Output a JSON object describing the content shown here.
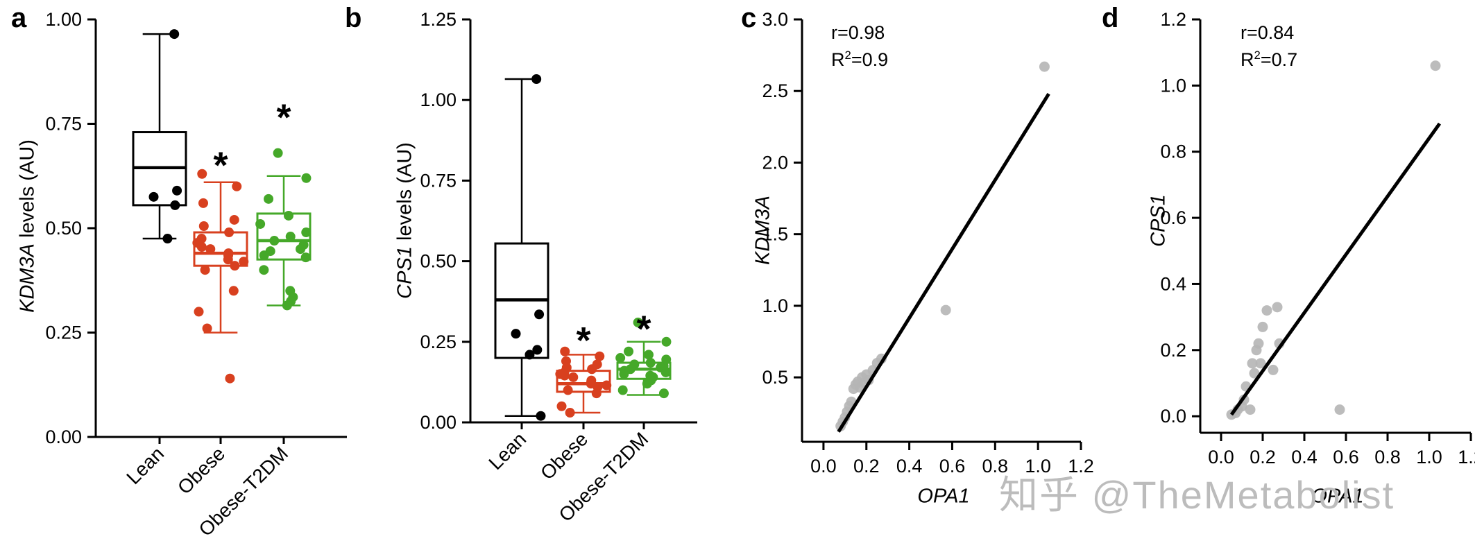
{
  "figure": {
    "background": "#ffffff"
  },
  "watermark": {
    "text": "知乎 @TheMetabolist"
  },
  "panels": {
    "a": {
      "letter": "a"
    },
    "b": {
      "letter": "b"
    },
    "c": {
      "letter": "c"
    },
    "d": {
      "letter": "d"
    }
  },
  "sig_marker": "*",
  "colors": {
    "lean": "#000000",
    "obese": "#d8401f",
    "obese_t2dm": "#45a829",
    "scatter_point": "#b5b5b5",
    "axis": "#000000"
  },
  "chart_data": [
    {
      "id": "a",
      "type": "box",
      "ylabel": {
        "italic": "KDM3A",
        "rest": " levels (AU)"
      },
      "ylim": [
        0,
        1.0
      ],
      "yticks": [
        "0.00",
        "0.25",
        "0.50",
        "0.75",
        "1.00"
      ],
      "categories": [
        "Lean",
        "Obese",
        "Obese-T2DM"
      ],
      "series": [
        {
          "name": "Lean",
          "color": "#000000",
          "box": {
            "lo": 0.475,
            "q1": 0.555,
            "med": 0.645,
            "q3": 0.73,
            "hi": 0.965
          },
          "points": [
            0.965,
            0.59,
            0.575,
            0.555,
            0.475
          ],
          "star": null
        },
        {
          "name": "Obese",
          "color": "#d8401f",
          "box": {
            "lo": 0.25,
            "q1": 0.41,
            "med": 0.44,
            "q3": 0.49,
            "hi": 0.61
          },
          "points": [
            0.63,
            0.6,
            0.56,
            0.52,
            0.505,
            0.49,
            0.475,
            0.465,
            0.455,
            0.45,
            0.44,
            0.435,
            0.425,
            0.42,
            0.41,
            0.4,
            0.35,
            0.3,
            0.26,
            0.14
          ],
          "star": 0.67
        },
        {
          "name": "Obese-T2DM",
          "color": "#45a829",
          "box": {
            "lo": 0.315,
            "q1": 0.425,
            "med": 0.47,
            "q3": 0.535,
            "hi": 0.625
          },
          "points": [
            0.68,
            0.62,
            0.57,
            0.53,
            0.51,
            0.49,
            0.48,
            0.47,
            0.46,
            0.45,
            0.445,
            0.435,
            0.43,
            0.4,
            0.35,
            0.335,
            0.325,
            0.315
          ],
          "star": 0.785
        }
      ]
    },
    {
      "id": "b",
      "type": "box",
      "ylabel": {
        "italic": "CPS1",
        "rest": " levels (AU)"
      },
      "ylim": [
        0,
        1.25
      ],
      "yticks": [
        "0.00",
        "0.25",
        "0.50",
        "0.75",
        "1.00",
        "1.25"
      ],
      "categories": [
        "Lean",
        "Obese",
        "Obese-T2DM"
      ],
      "series": [
        {
          "name": "Lean",
          "color": "#000000",
          "box": {
            "lo": 0.02,
            "q1": 0.2,
            "med": 0.38,
            "q3": 0.555,
            "hi": 1.065
          },
          "points": [
            1.065,
            0.335,
            0.275,
            0.225,
            0.21,
            0.02
          ],
          "star": null
        },
        {
          "name": "Obese",
          "color": "#d8401f",
          "box": {
            "lo": 0.03,
            "q1": 0.095,
            "med": 0.12,
            "q3": 0.16,
            "hi": 0.21
          },
          "points": [
            0.22,
            0.205,
            0.19,
            0.18,
            0.17,
            0.165,
            0.155,
            0.15,
            0.145,
            0.14,
            0.13,
            0.125,
            0.12,
            0.115,
            0.11,
            0.1,
            0.09,
            0.05,
            0.03
          ],
          "star": 0.28
        },
        {
          "name": "Obese-T2DM",
          "color": "#45a829",
          "box": {
            "lo": 0.085,
            "q1": 0.135,
            "med": 0.165,
            "q3": 0.185,
            "hi": 0.25
          },
          "points": [
            0.31,
            0.25,
            0.22,
            0.21,
            0.2,
            0.195,
            0.185,
            0.18,
            0.175,
            0.17,
            0.165,
            0.16,
            0.155,
            0.15,
            0.145,
            0.14,
            0.13,
            0.12,
            0.1,
            0.09
          ],
          "star": 0.315
        }
      ]
    },
    {
      "id": "c",
      "type": "scatter",
      "xlabel": {
        "italic": "OPA1",
        "rest": ""
      },
      "ylabel": {
        "italic": "KDM3A",
        "rest": ""
      },
      "xlim": [
        -0.1,
        1.2
      ],
      "ylim": [
        0.05,
        3.0
      ],
      "xticks": [
        "0.0",
        "0.2",
        "0.4",
        "0.6",
        "0.8",
        "1.0",
        "1.2"
      ],
      "yticks": [
        "0.5",
        "1.0",
        "1.5",
        "2.0",
        "2.5",
        "3.0"
      ],
      "point_color": "#b5b5b5",
      "points": [
        [
          0.08,
          0.16
        ],
        [
          0.09,
          0.19
        ],
        [
          0.1,
          0.22
        ],
        [
          0.11,
          0.26
        ],
        [
          0.12,
          0.3
        ],
        [
          0.13,
          0.33
        ],
        [
          0.14,
          0.42
        ],
        [
          0.15,
          0.45
        ],
        [
          0.16,
          0.47
        ],
        [
          0.17,
          0.43
        ],
        [
          0.18,
          0.5
        ],
        [
          0.19,
          0.46
        ],
        [
          0.2,
          0.52
        ],
        [
          0.21,
          0.48
        ],
        [
          0.23,
          0.55
        ],
        [
          0.25,
          0.6
        ],
        [
          0.27,
          0.63
        ],
        [
          0.57,
          0.97
        ],
        [
          1.03,
          2.67
        ]
      ],
      "fit_line": [
        [
          0.07,
          0.12
        ],
        [
          1.05,
          2.48
        ]
      ],
      "stats": {
        "r": "r=0.98",
        "r2_base": "R",
        "r2_sup": "2",
        "r2_rest": "=0.9"
      }
    },
    {
      "id": "d",
      "type": "scatter",
      "xlabel": {
        "italic": "OPA1",
        "rest": ""
      },
      "ylabel": {
        "italic": "CPS1",
        "rest": ""
      },
      "xlim": [
        -0.1,
        1.2
      ],
      "ylim": [
        -0.05,
        1.2
      ],
      "xticks": [
        "0.0",
        "0.2",
        "0.4",
        "0.6",
        "0.8",
        "1.0",
        "1.2"
      ],
      "yticks": [
        "0.0",
        "0.2",
        "0.4",
        "0.6",
        "0.8",
        "1.0",
        "1.2"
      ],
      "point_color": "#b5b5b5",
      "points": [
        [
          0.05,
          0.005
        ],
        [
          0.07,
          0.01
        ],
        [
          0.08,
          0.02
        ],
        [
          0.1,
          0.03
        ],
        [
          0.11,
          0.05
        ],
        [
          0.12,
          0.09
        ],
        [
          0.14,
          0.02
        ],
        [
          0.15,
          0.16
        ],
        [
          0.16,
          0.13
        ],
        [
          0.17,
          0.2
        ],
        [
          0.18,
          0.22
        ],
        [
          0.19,
          0.16
        ],
        [
          0.2,
          0.27
        ],
        [
          0.22,
          0.32
        ],
        [
          0.25,
          0.14
        ],
        [
          0.27,
          0.33
        ],
        [
          0.28,
          0.22
        ],
        [
          0.57,
          0.02
        ],
        [
          1.03,
          1.06
        ]
      ],
      "fit_line": [
        [
          0.05,
          0.005
        ],
        [
          1.05,
          0.885
        ]
      ],
      "stats": {
        "r": "r=0.84",
        "r2_base": "R",
        "r2_sup": "2",
        "r2_rest": "=0.7"
      }
    }
  ]
}
